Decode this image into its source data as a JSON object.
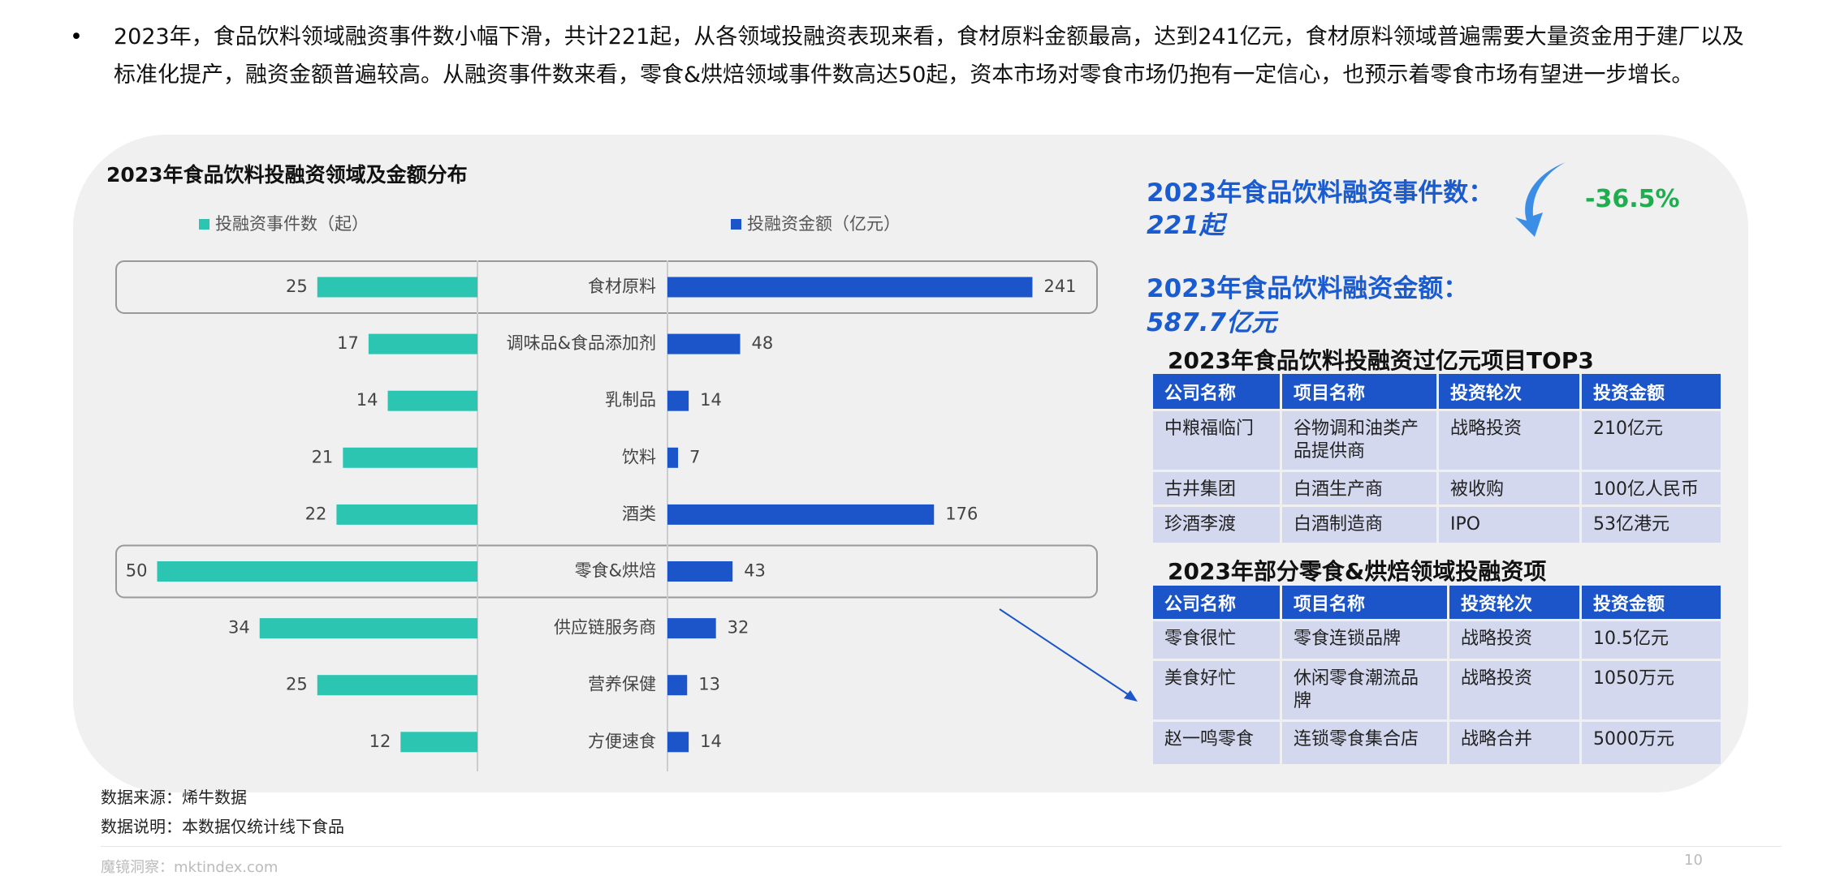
{
  "bullet": "2023年，食品饮料领域融资事件数小幅下滑，共计221起，从各领域投融资表现来看，食材原料金额最高，达到241亿元，食材原料领域普遍需要大量资金用于建厂以及标准化提产，融资金额普遍较高。从融资事件数来看，零食&烘焙领域事件数高达50起，资本市场对零食市场仍抱有一定信心，也预示着零食市场有望进一步增长。",
  "chart_data": {
    "type": "bar",
    "title": "2023年食品饮料投融资领域及金额分布",
    "categories": [
      "食材原料",
      "调味品&食品添加剂",
      "乳制品",
      "饮料",
      "酒类",
      "零食&烘焙",
      "供应链服务商",
      "营养保健",
      "方便速食"
    ],
    "series": [
      {
        "name": "投融资事件数（起）",
        "color": "#2cc5b2",
        "values": [
          25,
          17,
          14,
          21,
          22,
          50,
          34,
          25,
          12
        ]
      },
      {
        "name": "投融资金额（亿元）",
        "color": "#1b55c9",
        "values": [
          241,
          48,
          14,
          7,
          176,
          43,
          32,
          13,
          14
        ]
      }
    ]
  },
  "kpis": [
    {
      "label": "2023年食品饮料融资事件数：",
      "value": "221起",
      "change": "-36.5%"
    },
    {
      "label": "2023年食品饮料融资金额：",
      "value": "587.7亿元"
    }
  ],
  "tables": [
    {
      "title": "2023年食品饮料投融资过亿元项目TOP3",
      "header": [
        "公司名称",
        "项目名称",
        "投资轮次",
        "投资金额"
      ],
      "rows": [
        [
          "中粮福临门",
          "谷物调和油类产品提供商",
          "战略投资",
          "210亿元"
        ],
        [
          "古井集团",
          "白酒生产商",
          "被收购",
          "100亿人民币"
        ],
        [
          "珍酒李渡",
          "白酒制造商",
          "IPO",
          "53亿港元"
        ]
      ]
    },
    {
      "title": "2023年部分零食&烘焙领域投融资项",
      "header": [
        "公司名称",
        "项目名称",
        "投资轮次",
        "投资金额"
      ],
      "rows": [
        [
          "零食很忙",
          "零食连锁品牌",
          "战略投资",
          "10.5亿元"
        ],
        [
          "美食好忙",
          "休闲零食潮流品牌",
          "战略投资",
          "1050万元"
        ],
        [
          "赵一鸣零食",
          "连锁零食集合店",
          "战略合并",
          "5000万元"
        ]
      ]
    }
  ],
  "source": "数据来源：烯牛数据",
  "note": "数据说明：本数据仅统计线下食品",
  "footer": "魔镜洞察：mktindex.com",
  "page_number": "10"
}
